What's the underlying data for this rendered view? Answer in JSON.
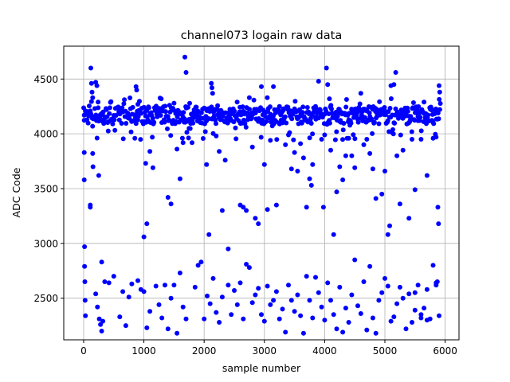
{
  "chart_data": {
    "type": "scatter",
    "title": "channel073 logain raw data",
    "xlabel": "sample number",
    "ylabel": "ADC Code",
    "xlim": [
      -330,
      6230
    ],
    "ylim": [
      2120,
      4800
    ],
    "xticks": [
      0,
      1000,
      2000,
      3000,
      4000,
      5000,
      6000
    ],
    "yticks": [
      2500,
      3000,
      3500,
      4000,
      4500
    ],
    "grid": true,
    "marker_color": "#0000ff",
    "series": [
      {
        "values": [
          [
            10,
            4170
          ],
          [
            10,
            3830
          ],
          [
            10,
            3580
          ],
          [
            15,
            2970
          ],
          [
            15,
            2790
          ],
          [
            20,
            2650
          ],
          [
            25,
            2480
          ],
          [
            30,
            2340
          ],
          [
            120,
            4600
          ],
          [
            130,
            4460
          ],
          [
            140,
            4380
          ],
          [
            150,
            4330
          ],
          [
            110,
            3350
          ],
          [
            110,
            3330
          ],
          [
            150,
            3820
          ],
          [
            155,
            3700
          ],
          [
            200,
            4470
          ],
          [
            220,
            4440
          ],
          [
            240,
            4290
          ],
          [
            250,
            3620
          ],
          [
            200,
            2540
          ],
          [
            230,
            2420
          ],
          [
            260,
            2310
          ],
          [
            280,
            2260
          ],
          [
            300,
            2200
          ],
          [
            320,
            2290
          ],
          [
            300,
            2830
          ],
          [
            350,
            2650
          ],
          [
            420,
            2640
          ],
          [
            500,
            2700
          ],
          [
            600,
            2330
          ],
          [
            650,
            2560
          ],
          [
            700,
            2250
          ],
          [
            750,
            2510
          ],
          [
            800,
            2630
          ],
          [
            900,
            2660
          ],
          [
            950,
            2580
          ],
          [
            1000,
            2560
          ],
          [
            1050,
            2230
          ],
          [
            1100,
            2380
          ],
          [
            870,
            4430
          ],
          [
            880,
            4400
          ],
          [
            900,
            4270
          ],
          [
            850,
            3960
          ],
          [
            1000,
            3060
          ],
          [
            1030,
            3730
          ],
          [
            1050,
            3180
          ],
          [
            1100,
            3840
          ],
          [
            1150,
            3690
          ],
          [
            1200,
            2610
          ],
          [
            1250,
            2440
          ],
          [
            1300,
            2320
          ],
          [
            1350,
            2620
          ],
          [
            1400,
            2220
          ],
          [
            1450,
            2500
          ],
          [
            1500,
            2620
          ],
          [
            1550,
            2180
          ],
          [
            1600,
            2730
          ],
          [
            1650,
            2420
          ],
          [
            1700,
            2310
          ],
          [
            1400,
            3420
          ],
          [
            1450,
            3360
          ],
          [
            1500,
            4280
          ],
          [
            1550,
            3860
          ],
          [
            1600,
            3590
          ],
          [
            1650,
            3920
          ],
          [
            1680,
            4700
          ],
          [
            1700,
            4560
          ],
          [
            1750,
            4050
          ],
          [
            1800,
            3920
          ],
          [
            1850,
            2600
          ],
          [
            1900,
            2800
          ],
          [
            1950,
            2830
          ],
          [
            2000,
            2310
          ],
          [
            2050,
            2520
          ],
          [
            2100,
            2450
          ],
          [
            2150,
            2680
          ],
          [
            2200,
            2370
          ],
          [
            2250,
            2280
          ],
          [
            2300,
            2510
          ],
          [
            2040,
            3720
          ],
          [
            2080,
            3080
          ],
          [
            2120,
            4460
          ],
          [
            2130,
            4420
          ],
          [
            2140,
            4370
          ],
          [
            2200,
            3980
          ],
          [
            2250,
            3840
          ],
          [
            2300,
            3300
          ],
          [
            2350,
            3760
          ],
          [
            2400,
            2950
          ],
          [
            2400,
            2620
          ],
          [
            2450,
            2350
          ],
          [
            2500,
            2570
          ],
          [
            2550,
            2440
          ],
          [
            2600,
            2640
          ],
          [
            2650,
            2310
          ],
          [
            2700,
            2810
          ],
          [
            2750,
            2780
          ],
          [
            2800,
            2460
          ],
          [
            2850,
            2530
          ],
          [
            2900,
            2590
          ],
          [
            2950,
            2350
          ],
          [
            3000,
            2290
          ],
          [
            3050,
            2610
          ],
          [
            3100,
            2440
          ],
          [
            3150,
            2480
          ],
          [
            3200,
            2560
          ],
          [
            3250,
            2310
          ],
          [
            3300,
            2400
          ],
          [
            3350,
            2190
          ],
          [
            2600,
            3350
          ],
          [
            2650,
            3330
          ],
          [
            2700,
            3300
          ],
          [
            2750,
            4330
          ],
          [
            2800,
            3880
          ],
          [
            2850,
            3230
          ],
          [
            2900,
            3180
          ],
          [
            2950,
            4430
          ],
          [
            3000,
            3720
          ],
          [
            3050,
            3310
          ],
          [
            3100,
            3940
          ],
          [
            3150,
            4430
          ],
          [
            3200,
            3350
          ],
          [
            3250,
            4250
          ],
          [
            3300,
            4100
          ],
          [
            3350,
            3900
          ],
          [
            3400,
            3990
          ],
          [
            3450,
            3680
          ],
          [
            3500,
            3830
          ],
          [
            3550,
            3660
          ],
          [
            3400,
            2620
          ],
          [
            3450,
            2480
          ],
          [
            3500,
            2380
          ],
          [
            3550,
            2530
          ],
          [
            3600,
            2340
          ],
          [
            3650,
            2180
          ],
          [
            3700,
            2700
          ],
          [
            3750,
            2480
          ],
          [
            3800,
            2320
          ],
          [
            3850,
            2690
          ],
          [
            3600,
            3910
          ],
          [
            3650,
            3780
          ],
          [
            3700,
            3330
          ],
          [
            3750,
            3590
          ],
          [
            3780,
            3530
          ],
          [
            3800,
            3720
          ],
          [
            3850,
            4250
          ],
          [
            3900,
            4480
          ],
          [
            3950,
            3950
          ],
          [
            3980,
            3330
          ],
          [
            4000,
            3990
          ],
          [
            4030,
            4600
          ],
          [
            4050,
            4450
          ],
          [
            4080,
            4320
          ],
          [
            4100,
            3850
          ],
          [
            4150,
            3080
          ],
          [
            4200,
            3470
          ],
          [
            4250,
            3700
          ],
          [
            4300,
            3580
          ],
          [
            4350,
            3800
          ],
          [
            3900,
            2550
          ],
          [
            3950,
            2420
          ],
          [
            4000,
            2300
          ],
          [
            4050,
            2640
          ],
          [
            4100,
            2480
          ],
          [
            4150,
            2350
          ],
          [
            4200,
            2220
          ],
          [
            4250,
            2600
          ],
          [
            4300,
            2190
          ],
          [
            4350,
            2410
          ],
          [
            4400,
            2280
          ],
          [
            4450,
            2530
          ],
          [
            4500,
            2850
          ],
          [
            4550,
            2430
          ],
          [
            4600,
            2360
          ],
          [
            4650,
            2650
          ],
          [
            4700,
            2210
          ],
          [
            4750,
            2790
          ],
          [
            4800,
            2320
          ],
          [
            4850,
            2180
          ],
          [
            4400,
            3960
          ],
          [
            4450,
            3800
          ],
          [
            4500,
            3690
          ],
          [
            4550,
            4200
          ],
          [
            4600,
            4370
          ],
          [
            4650,
            3900
          ],
          [
            4700,
            3950
          ],
          [
            4750,
            3820
          ],
          [
            4800,
            3680
          ],
          [
            4850,
            3410
          ],
          [
            4900,
            2480
          ],
          [
            4950,
            2550
          ],
          [
            5000,
            2680
          ],
          [
            5050,
            2610
          ],
          [
            5100,
            2290
          ],
          [
            5150,
            2330
          ],
          [
            5200,
            2450
          ],
          [
            5250,
            2600
          ],
          [
            5300,
            2500
          ],
          [
            5350,
            2220
          ],
          [
            4950,
            3450
          ],
          [
            5000,
            3660
          ],
          [
            5050,
            3080
          ],
          [
            5080,
            3160
          ],
          [
            5100,
            4440
          ],
          [
            5150,
            4450
          ],
          [
            5180,
            4560
          ],
          [
            5200,
            3800
          ],
          [
            5250,
            3360
          ],
          [
            5300,
            3850
          ],
          [
            5400,
            2540
          ],
          [
            5450,
            2280
          ],
          [
            5500,
            2550
          ],
          [
            5550,
            2620
          ],
          [
            5600,
            2350
          ],
          [
            5650,
            2410
          ],
          [
            5700,
            2580
          ],
          [
            5750,
            2310
          ],
          [
            5800,
            2800
          ],
          [
            5850,
            2640
          ],
          [
            5400,
            3230
          ],
          [
            5450,
            3950
          ],
          [
            5500,
            3490
          ],
          [
            5550,
            4120
          ],
          [
            5600,
            3950
          ],
          [
            5650,
            4290
          ],
          [
            5700,
            3620
          ],
          [
            5750,
            4240
          ],
          [
            5800,
            3960
          ],
          [
            5850,
            3970
          ],
          [
            5880,
            3330
          ],
          [
            5890,
            3180
          ],
          [
            5900,
            4440
          ],
          [
            5910,
            4380
          ],
          [
            5900,
            2340
          ],
          [
            5870,
            2650
          ],
          [
            5850,
            2620
          ],
          [
            5700,
            2300
          ],
          [
            5600,
            2320
          ],
          [
            5500,
            2390
          ]
        ],
        "band": {
          "x_from": 0,
          "x_to": 5920,
          "count": 640,
          "y_core": [
            4090,
            4250
          ],
          "y_outer": [
            3940,
            4330
          ]
        }
      }
    ]
  }
}
